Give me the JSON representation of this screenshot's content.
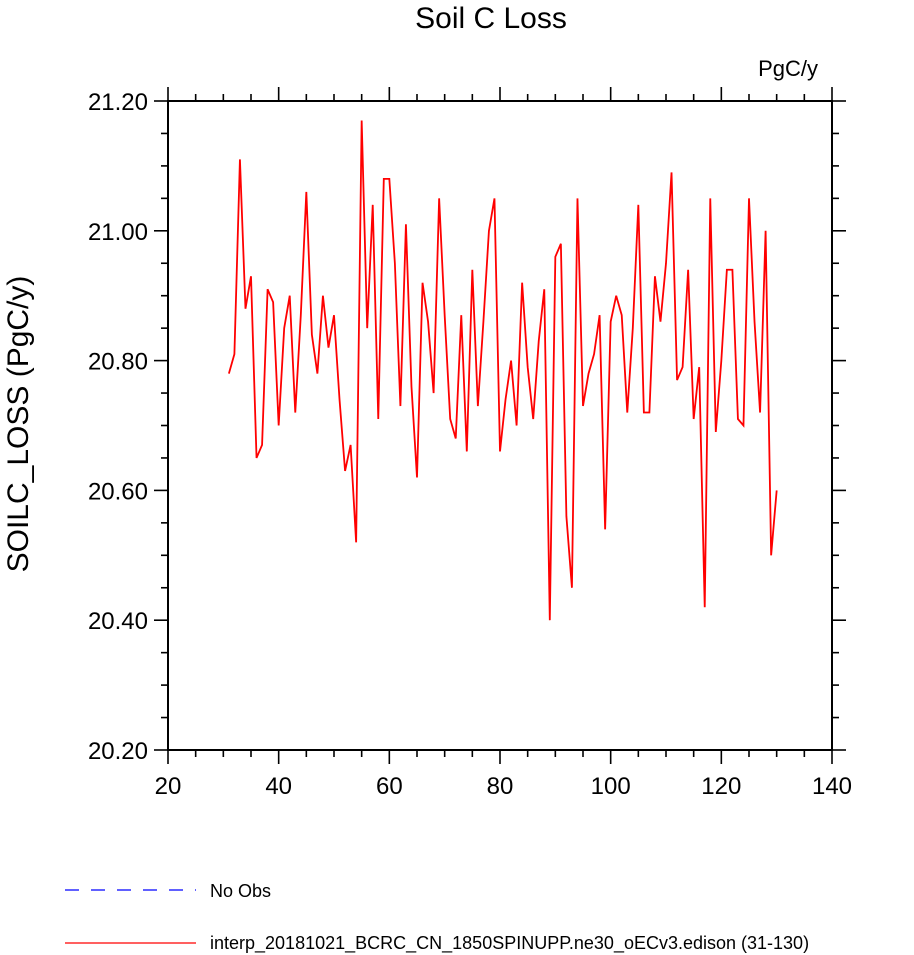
{
  "chart_data": {
    "type": "line",
    "title": "Soil C Loss",
    "units": "PgC/y",
    "ylabel": "SOILC_LOSS  (PgC/y)",
    "xlabel": "",
    "xlim": [
      20,
      140
    ],
    "ylim": [
      20.2,
      21.2
    ],
    "x_ticks": [
      20,
      40,
      60,
      80,
      100,
      120,
      140
    ],
    "x_tick_labels": [
      "20",
      "40",
      "60",
      "80",
      "100",
      "120",
      "140"
    ],
    "y_ticks": [
      20.2,
      20.4,
      20.6,
      20.8,
      21.0,
      21.2
    ],
    "y_tick_labels": [
      "20.20",
      "20.40",
      "20.60",
      "20.80",
      "21.00",
      "21.20"
    ],
    "grid": false,
    "legend_placement": "bottom",
    "series": [
      {
        "name": "interp_20181021_BCRC_CN_1850SPINUPP.ne30_oECv3.edison (31-130)",
        "color": "#ff0000",
        "style": "solid",
        "x": [
          31,
          32,
          33,
          34,
          35,
          36,
          37,
          38,
          39,
          40,
          41,
          42,
          43,
          44,
          45,
          46,
          47,
          48,
          49,
          50,
          51,
          52,
          53,
          54,
          55,
          56,
          57,
          58,
          59,
          60,
          61,
          62,
          63,
          64,
          65,
          66,
          67,
          68,
          69,
          70,
          71,
          72,
          73,
          74,
          75,
          76,
          77,
          78,
          79,
          80,
          81,
          82,
          83,
          84,
          85,
          86,
          87,
          88,
          89,
          90,
          91,
          92,
          93,
          94,
          95,
          96,
          97,
          98,
          99,
          100,
          101,
          102,
          103,
          104,
          105,
          106,
          107,
          108,
          109,
          110,
          111,
          112,
          113,
          114,
          115,
          116,
          117,
          118,
          119,
          120,
          121,
          122,
          123,
          124,
          125,
          126,
          127,
          128,
          129,
          130
        ],
        "values": [
          20.78,
          20.81,
          21.11,
          20.88,
          20.93,
          20.65,
          20.67,
          20.91,
          20.89,
          20.7,
          20.85,
          20.9,
          20.72,
          20.87,
          21.06,
          20.84,
          20.78,
          20.9,
          20.82,
          20.87,
          20.74,
          20.63,
          20.67,
          20.52,
          21.17,
          20.85,
          21.04,
          20.71,
          21.08,
          21.08,
          20.95,
          20.73,
          21.01,
          20.76,
          20.62,
          20.92,
          20.86,
          20.75,
          21.05,
          20.87,
          20.71,
          20.68,
          20.87,
          20.66,
          20.94,
          20.73,
          20.86,
          21.0,
          21.05,
          20.66,
          20.74,
          20.8,
          20.7,
          20.92,
          20.79,
          20.71,
          20.83,
          20.91,
          20.4,
          20.96,
          20.98,
          20.56,
          20.45,
          21.05,
          20.73,
          20.78,
          20.81,
          20.87,
          20.54,
          20.86,
          20.9,
          20.87,
          20.72,
          20.85,
          21.04,
          20.72,
          20.72,
          20.93,
          20.86,
          20.95,
          21.09,
          20.77,
          20.79,
          20.94,
          20.71,
          20.79,
          20.42,
          21.05,
          20.69,
          20.8,
          20.94,
          20.94,
          20.71,
          20.7,
          21.05,
          20.86,
          20.72,
          21.0,
          20.5,
          20.6
        ]
      }
    ]
  },
  "legend": {
    "items": [
      {
        "label": "No Obs",
        "color": "#0000ff",
        "style": "dashed"
      },
      {
        "label": "interp_20181021_BCRC_CN_1850SPINUPP.ne30_oECv3.edison (31-130)",
        "color": "#ff0000",
        "style": "solid"
      }
    ]
  }
}
